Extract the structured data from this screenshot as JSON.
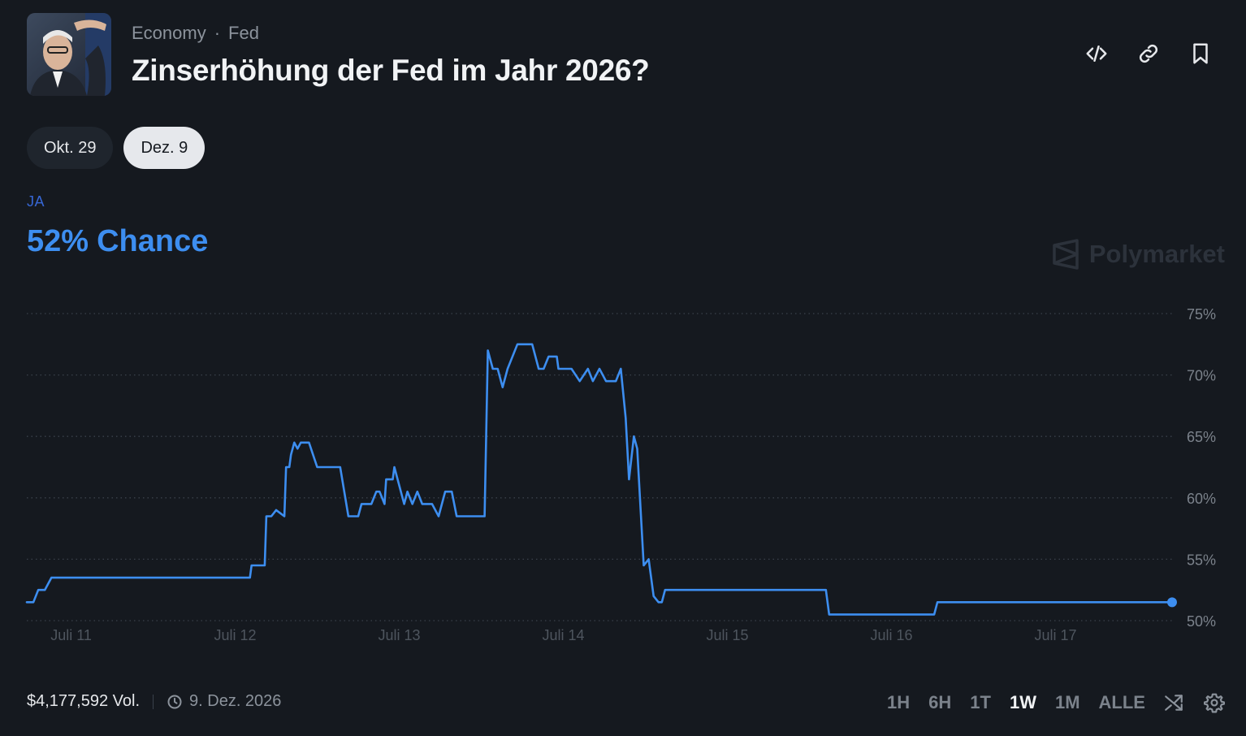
{
  "header": {
    "breadcrumb": [
      "Economy",
      "Fed"
    ],
    "breadcrumb_sep": "·",
    "title": "Zinserhöhung der Fed im Jahr 2026?"
  },
  "top_icons": [
    "code-embed-icon",
    "link-icon",
    "bookmark-icon"
  ],
  "date_tabs": [
    {
      "label": "Okt. 29",
      "active": false
    },
    {
      "label": "Dez. 9",
      "active": true
    }
  ],
  "outcome": {
    "label": "JA",
    "value": "52%",
    "suffix": "Chance",
    "color": "#3d8ef0"
  },
  "watermark": "Polymarket",
  "footer": {
    "volume": "$4,177,592 Vol.",
    "end_date": "9. Dez. 2026",
    "ranges": [
      {
        "label": "1H",
        "active": false
      },
      {
        "label": "6H",
        "active": false
      },
      {
        "label": "1T",
        "active": false
      },
      {
        "label": "1W",
        "active": true
      },
      {
        "label": "1M",
        "active": false
      },
      {
        "label": "ALLE",
        "active": false
      }
    ]
  },
  "chart_data": {
    "type": "line",
    "x_tick_labels": [
      "Juli 11",
      "Juli 12",
      "Juli 13",
      "Juli 14",
      "Juli 15",
      "Juli 16",
      "Juli 17"
    ],
    "y_tick_labels": [
      "75%",
      "70%",
      "65%",
      "60%",
      "55%",
      "50%"
    ],
    "ylim": [
      50,
      75
    ],
    "xlim": [
      10.73,
      17.72
    ],
    "grid": true,
    "line_color": "#3d8ef0",
    "series": [
      {
        "x": [
          10.73,
          10.77,
          10.8,
          10.83,
          10.84,
          10.88,
          11.0,
          11.3,
          11.5,
          11.8,
          12.09,
          12.1,
          12.18,
          12.19,
          12.22,
          12.25,
          12.3,
          12.31,
          12.33,
          12.34,
          12.36,
          12.38,
          12.4,
          12.42,
          12.45,
          12.5,
          12.64,
          12.69,
          12.75,
          12.77,
          12.83,
          12.86,
          12.88,
          12.91,
          12.92,
          12.96,
          12.97,
          13.03,
          13.05,
          13.08,
          13.11,
          13.14,
          13.17,
          13.2,
          13.24,
          13.28,
          13.32,
          13.35,
          13.37,
          13.4,
          13.45,
          13.52,
          13.54,
          13.57,
          13.6,
          13.63,
          13.66,
          13.72,
          13.77,
          13.81,
          13.85,
          13.88,
          13.91,
          13.93,
          13.96,
          13.97,
          14.0,
          14.05,
          14.1,
          14.15,
          14.18,
          14.22,
          14.26,
          14.32,
          14.35,
          14.38,
          14.4,
          14.43,
          14.45,
          14.49,
          14.52,
          14.55,
          14.58,
          14.6,
          14.62,
          14.64,
          14.68,
          14.7,
          14.72,
          14.74,
          14.77,
          15.0,
          15.3,
          15.6,
          15.62,
          15.85,
          15.99,
          16.26,
          16.28,
          16.5,
          16.8,
          17.1,
          17.4,
          17.71
        ],
        "y": [
          51.5,
          51.5,
          52.5,
          52.5,
          52.5,
          53.5,
          53.5,
          53.5,
          53.5,
          53.5,
          53.5,
          54.5,
          54.5,
          58.5,
          58.5,
          59.0,
          58.5,
          62.5,
          62.5,
          63.5,
          64.5,
          64.0,
          64.5,
          64.5,
          64.5,
          62.5,
          62.5,
          58.5,
          58.5,
          59.5,
          59.5,
          60.5,
          60.5,
          59.5,
          61.5,
          61.5,
          62.5,
          59.5,
          60.5,
          59.5,
          60.5,
          59.5,
          59.5,
          59.5,
          58.5,
          60.5,
          60.5,
          58.5,
          58.5,
          58.5,
          58.5,
          58.5,
          72.0,
          70.5,
          70.5,
          69.0,
          70.5,
          72.5,
          72.5,
          72.5,
          70.5,
          70.5,
          71.5,
          71.5,
          71.5,
          70.5,
          70.5,
          70.5,
          69.5,
          70.5,
          69.5,
          70.5,
          69.5,
          69.5,
          70.5,
          66.5,
          61.5,
          65.0,
          64.0,
          54.5,
          55.0,
          52.0,
          51.5,
          51.5,
          52.5,
          52.5,
          52.5,
          52.5,
          52.5,
          52.5,
          52.5,
          52.5,
          52.5,
          52.5,
          50.5,
          50.5,
          50.5,
          50.5,
          51.5,
          51.5,
          51.5,
          51.5,
          51.5,
          51.5
        ]
      }
    ]
  }
}
